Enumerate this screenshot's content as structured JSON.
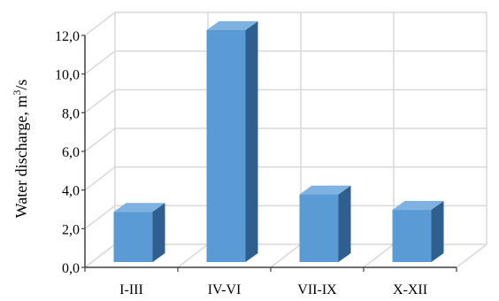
{
  "chart_data": {
    "type": "bar",
    "categories": [
      "I-III",
      "IV-VI",
      "VII-IX",
      "X-XII"
    ],
    "values": [
      2.6,
      12.0,
      3.5,
      2.7
    ],
    "ylabel_main": "Water discharge, m",
    "ylabel_sup": "3",
    "ylabel_unit": "/s",
    "ylim": [
      0,
      12
    ],
    "yticks": [
      "0,0",
      "2,0",
      "4,0",
      "6,0",
      "8,0",
      "10,0",
      "12,0"
    ],
    "grid": true,
    "style": "3d-column",
    "colors": {
      "front": "#5b9bd5",
      "top": "#7fb2e0",
      "side": "#2e5f8e",
      "grid": "#d9d9d9",
      "axis": "#404040"
    }
  }
}
